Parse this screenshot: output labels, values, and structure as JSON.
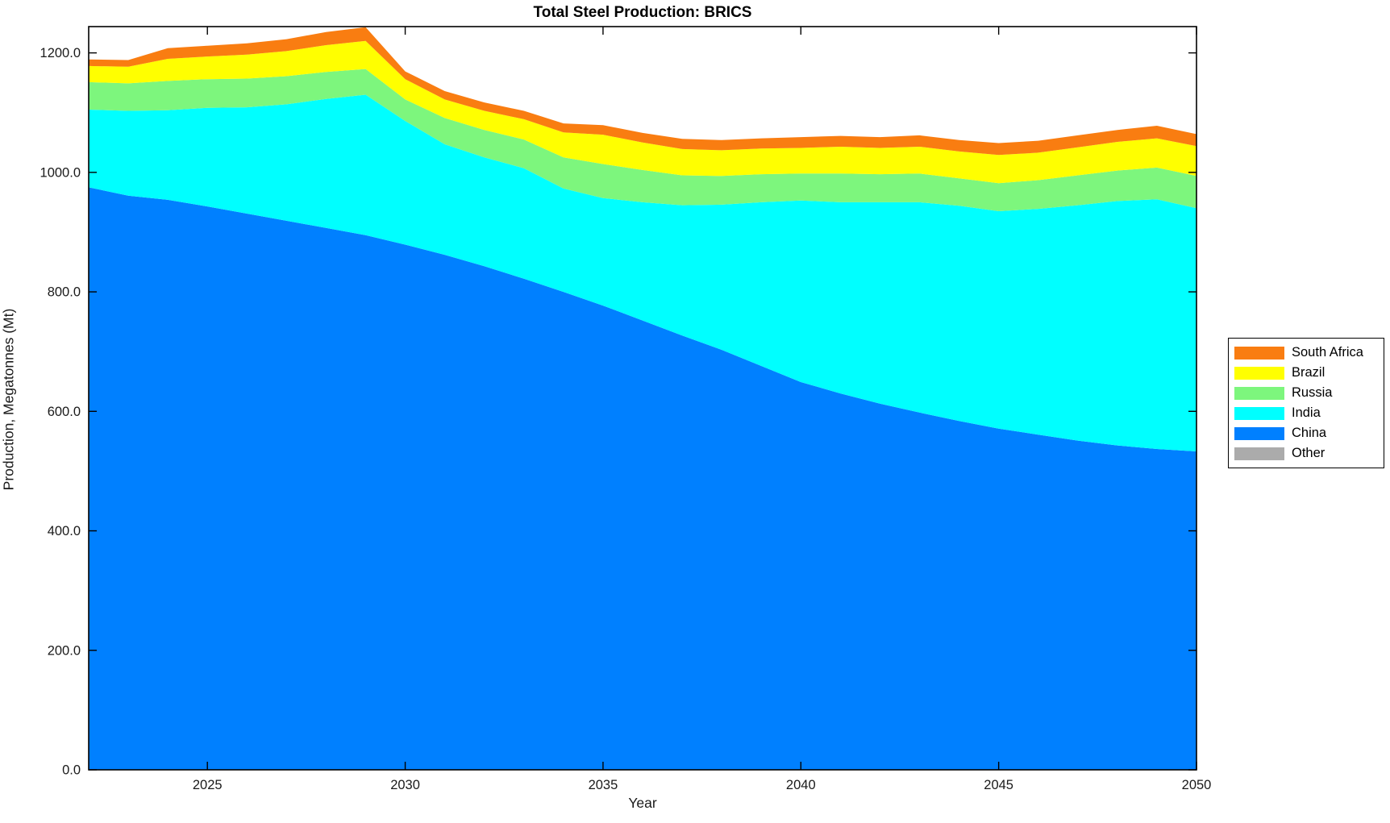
{
  "chart_data": {
    "type": "area",
    "stacked": true,
    "title": "Total Steel Production: BRICS",
    "xlabel": "Year",
    "ylabel": "Production, Megatonnes (Mt)",
    "grid": false,
    "background": "#FFFFFF",
    "axis_color": "#000000",
    "legend_position": "outside-right",
    "xlim": [
      2022,
      2050
    ],
    "ylim": [
      0,
      1244
    ],
    "xticks": {
      "values": [
        2025,
        2030,
        2035,
        2040,
        2045,
        2050
      ],
      "labels": [
        "2025",
        "2030",
        "2035",
        "2040",
        "2045",
        "2050"
      ]
    },
    "yticks": {
      "values": [
        0,
        200,
        400,
        600,
        800,
        1000,
        1200
      ],
      "labels": [
        "0.0",
        "200.0",
        "400.0",
        "600.0",
        "800.0",
        "1000.0",
        "1200.0"
      ]
    },
    "x": [
      2022,
      2023,
      2024,
      2025,
      2026,
      2027,
      2028,
      2029,
      2030,
      2031,
      2032,
      2033,
      2034,
      2035,
      2036,
      2037,
      2038,
      2039,
      2040,
      2041,
      2042,
      2043,
      2044,
      2045,
      2046,
      2047,
      2048,
      2049,
      2050
    ],
    "series": [
      {
        "name": "South Africa",
        "color": "#F97D11",
        "values": [
          11,
          11,
          18,
          18,
          19,
          20,
          22,
          23,
          13,
          14,
          14,
          14,
          15,
          16,
          16,
          17,
          17,
          17,
          18,
          18,
          18,
          19,
          19,
          20,
          20,
          20,
          20,
          21,
          20
        ]
      },
      {
        "name": "Brazil",
        "color": "#FFFF00",
        "values": [
          27,
          28,
          37,
          38,
          40,
          42,
          45,
          47,
          34,
          31,
          32,
          34,
          42,
          49,
          46,
          44,
          43,
          43,
          43,
          45,
          44,
          45,
          45,
          47,
          46,
          47,
          48,
          49,
          50
        ]
      },
      {
        "name": "Russia",
        "color": "#7DF67D",
        "values": [
          46,
          46,
          49,
          48,
          48,
          47,
          45,
          43,
          36,
          44,
          46,
          48,
          52,
          57,
          54,
          50,
          48,
          47,
          45,
          48,
          47,
          48,
          46,
          47,
          48,
          50,
          51,
          53,
          54
        ]
      },
      {
        "name": "India",
        "color": "#00FFFF",
        "values": [
          130,
          142,
          150,
          165,
          178,
          195,
          216,
          235,
          207,
          185,
          182,
          185,
          173,
          180,
          198,
          218,
          243,
          274,
          304,
          320,
          337,
          352,
          360,
          364,
          378,
          394,
          409,
          418,
          407
        ]
      },
      {
        "name": "China",
        "color": "#0080FF",
        "values": [
          975,
          961,
          954,
          943,
          931,
          919,
          907,
          895,
          879,
          862,
          843,
          822,
          800,
          777,
          752,
          727,
          703,
          676,
          649,
          630,
          613,
          598,
          584,
          571,
          561,
          551,
          543,
          537,
          533
        ]
      },
      {
        "name": "Other",
        "color": "#ABABAB",
        "values": [
          0,
          0,
          0,
          0,
          0,
          0,
          0,
          0,
          0,
          0,
          0,
          0,
          0,
          0,
          0,
          0,
          0,
          0,
          0,
          0,
          0,
          0,
          0,
          0,
          0,
          0,
          0,
          0,
          0
        ]
      }
    ]
  }
}
